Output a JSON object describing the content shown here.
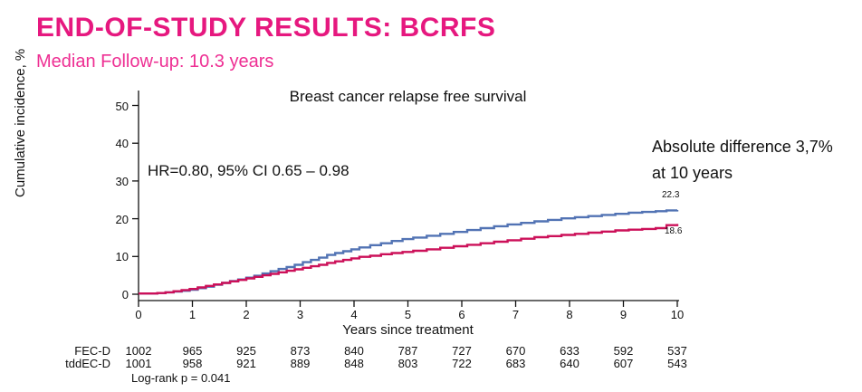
{
  "page": {
    "title": "END-OF-STUDY RESULTS: BCRFS",
    "subtitle": "Median Follow-up: 10.3 years"
  },
  "colors": {
    "title_magenta": "#e6187f",
    "subtitle_pink": "#ee2f93",
    "fecd_blue": "#5273b4",
    "tddecd_red": "#cc1059",
    "axis_color": "#111111"
  },
  "chart_data": {
    "type": "line",
    "title": "Breast cancer relapse free survival",
    "xlabel": "Years since treatment",
    "ylabel": "Cumulative incidence, %",
    "xlim": [
      0,
      10
    ],
    "ylim": [
      0,
      50
    ],
    "xticks": [
      0,
      1,
      2,
      3,
      4,
      5,
      6,
      7,
      8,
      9,
      10
    ],
    "yticks": [
      0,
      10,
      20,
      30,
      40,
      50
    ],
    "grid": false,
    "legend_position": "none",
    "annotations": {
      "hr_text": "HR=0.80, 95% CI 0.65 – 0.98",
      "abs_diff_line1": "Absolute difference 3,7%",
      "abs_diff_line2": "at 10 years",
      "logrank_text": "Log-rank p = 0.041"
    },
    "series": [
      {
        "name": "FEC-D",
        "color": "#5273b4",
        "end_label": "22.3",
        "x": [
          0,
          0.35,
          0.5,
          0.65,
          0.8,
          0.95,
          1.1,
          1.25,
          1.4,
          1.55,
          1.7,
          1.85,
          2.0,
          2.15,
          2.3,
          2.45,
          2.6,
          2.75,
          2.9,
          3.05,
          3.2,
          3.35,
          3.5,
          3.65,
          3.8,
          3.95,
          4.1,
          4.3,
          4.5,
          4.7,
          4.9,
          5.1,
          5.35,
          5.6,
          5.85,
          6.1,
          6.35,
          6.6,
          6.85,
          7.1,
          7.35,
          7.6,
          7.85,
          8.1,
          8.35,
          8.6,
          8.85,
          9.1,
          9.35,
          9.6,
          9.8,
          10
        ],
        "y": [
          0.2,
          0.3,
          0.5,
          0.7,
          0.9,
          1.2,
          1.6,
          2.0,
          2.5,
          3.0,
          3.5,
          3.9,
          4.4,
          4.9,
          5.5,
          6.1,
          6.7,
          7.2,
          7.8,
          8.5,
          9.1,
          9.7,
          10.4,
          10.9,
          11.4,
          11.9,
          12.4,
          13.0,
          13.5,
          14.1,
          14.6,
          15.0,
          15.5,
          16.0,
          16.5,
          17.0,
          17.5,
          18.0,
          18.5,
          18.9,
          19.3,
          19.7,
          20.1,
          20.4,
          20.7,
          21.0,
          21.3,
          21.6,
          21.8,
          22.0,
          22.2,
          22.3
        ]
      },
      {
        "name": "tddEC-D",
        "color": "#cc1059",
        "end_label": "18.6",
        "x": [
          0,
          0.35,
          0.5,
          0.65,
          0.8,
          0.95,
          1.1,
          1.25,
          1.4,
          1.55,
          1.7,
          1.85,
          2.0,
          2.15,
          2.3,
          2.45,
          2.6,
          2.75,
          2.9,
          3.05,
          3.2,
          3.35,
          3.5,
          3.65,
          3.8,
          3.95,
          4.1,
          4.3,
          4.5,
          4.7,
          4.9,
          5.1,
          5.35,
          5.6,
          5.85,
          6.1,
          6.35,
          6.6,
          6.85,
          7.1,
          7.35,
          7.6,
          7.85,
          8.1,
          8.35,
          8.6,
          8.85,
          9.1,
          9.35,
          9.6,
          9.8,
          10
        ],
        "y": [
          0.2,
          0.3,
          0.5,
          0.8,
          1.1,
          1.4,
          1.8,
          2.2,
          2.6,
          3.0,
          3.4,
          3.8,
          4.2,
          4.6,
          5.0,
          5.4,
          5.8,
          6.2,
          6.6,
          7.0,
          7.4,
          7.8,
          8.3,
          8.7,
          9.1,
          9.5,
          9.9,
          10.2,
          10.6,
          10.9,
          11.2,
          11.5,
          11.9,
          12.3,
          12.7,
          13.1,
          13.5,
          13.9,
          14.3,
          14.7,
          15.1,
          15.4,
          15.7,
          16.0,
          16.3,
          16.6,
          16.9,
          17.1,
          17.3,
          17.5,
          18.3,
          18.6
        ]
      }
    ],
    "risk_table": {
      "rows": [
        {
          "label": "FEC-D",
          "counts": [
            1002,
            965,
            925,
            873,
            840,
            787,
            727,
            670,
            633,
            592,
            537
          ]
        },
        {
          "label": "tddEC-D",
          "counts": [
            1001,
            958,
            921,
            889,
            848,
            803,
            722,
            683,
            640,
            607,
            543
          ]
        }
      ]
    }
  }
}
